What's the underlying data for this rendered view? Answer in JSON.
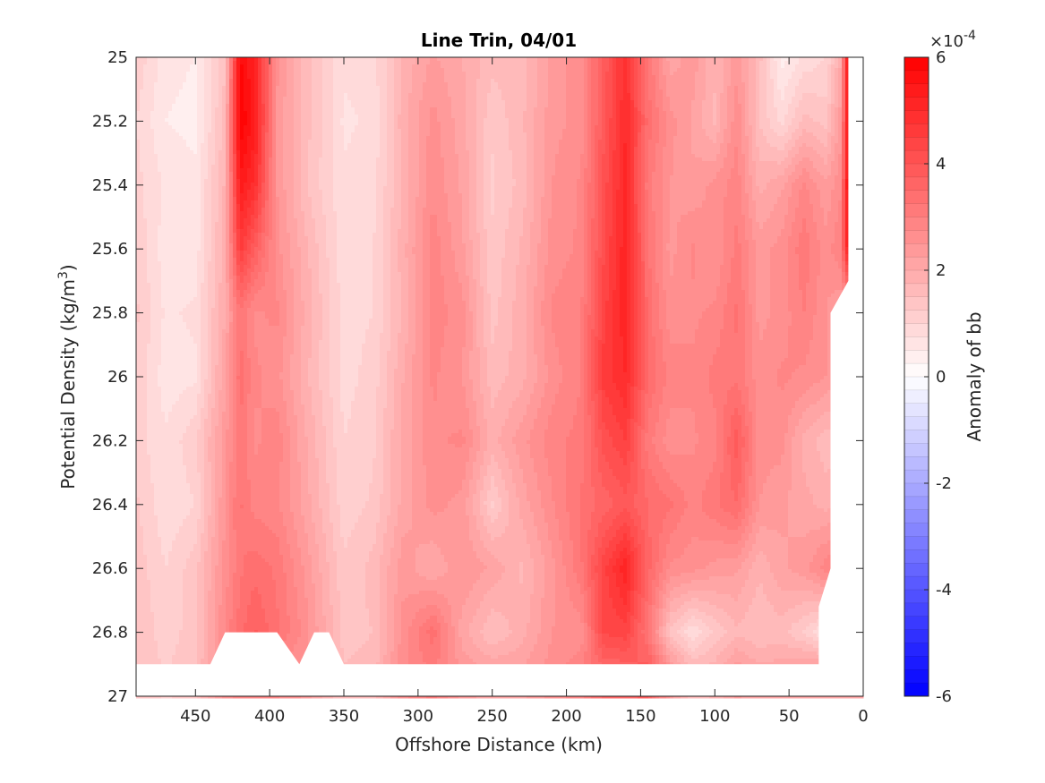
{
  "chart_data": {
    "type": "heatmap",
    "title": "Line Trin, 04/01",
    "xlabel": "Offshore Distance (km)",
    "ylabel_main": "Potential Density (kg/m",
    "ylabel_sup": "3",
    "ylabel_tail": ")",
    "x_reversed": true,
    "xlim": [
      0,
      490
    ],
    "ylim": [
      25,
      27
    ],
    "y_reversed": true,
    "x_ticks": [
      450,
      400,
      350,
      300,
      250,
      200,
      150,
      100,
      50,
      0
    ],
    "x_tick_labels": [
      "450",
      "400",
      "350",
      "300",
      "250",
      "200",
      "150",
      "100",
      "50",
      "0"
    ],
    "y_ticks": [
      25,
      25.2,
      25.4,
      25.6,
      25.8,
      26,
      26.2,
      26.4,
      26.6,
      26.8,
      27
    ],
    "y_tick_labels": [
      "25",
      "25.2",
      "25.4",
      "25.6",
      "25.8",
      "26",
      "26.2",
      "26.4",
      "26.6",
      "26.8",
      "27"
    ],
    "colorbar": {
      "label": "Anomaly of bb",
      "exponent_base": "×10",
      "exponent": "-4",
      "range": [
        -6,
        6
      ],
      "ticks": [
        6,
        4,
        2,
        0,
        -2,
        -4,
        -6
      ],
      "tick_labels": [
        "6",
        "4",
        "2",
        "0",
        "-2",
        "-4",
        "-6"
      ],
      "levels": 48,
      "color_positive": "#ff0000",
      "color_zero": "#ffffff",
      "color_negative": "#0000ff"
    },
    "grid": false,
    "field": {
      "description_note": "",
      "x_km": [
        490,
        470,
        450,
        430,
        420,
        410,
        395,
        375,
        350,
        330,
        310,
        290,
        270,
        250,
        230,
        210,
        190,
        175,
        160,
        145,
        130,
        115,
        100,
        85,
        70,
        55,
        40,
        25,
        15,
        10
      ],
      "y": [
        25.0,
        25.2,
        25.4,
        25.6,
        25.8,
        26.0,
        26.2,
        26.4,
        26.6,
        26.8,
        26.9
      ],
      "values_e4": [
        [
          1.2,
          0.6,
          0.5,
          1.5,
          5.8,
          5.2,
          2.6,
          1.6,
          0.8,
          0.9,
          1.8,
          2.3,
          2.0,
          1.6,
          1.6,
          2.3,
          2.7,
          3.8,
          4.9,
          3.2,
          2.1,
          2.4,
          1.8,
          2.4,
          1.6,
          0.4,
          0.8,
          1.0,
          2.0,
          5.8
        ],
        [
          1.0,
          0.5,
          0.4,
          1.6,
          6.0,
          5.4,
          2.4,
          1.6,
          0.7,
          0.8,
          1.9,
          2.6,
          2.1,
          1.3,
          1.7,
          2.4,
          2.6,
          3.9,
          5.0,
          3.4,
          2.6,
          2.2,
          1.7,
          2.7,
          1.5,
          0.9,
          1.6,
          1.4,
          2.4,
          5.6
        ],
        [
          1.1,
          0.7,
          0.6,
          1.8,
          5.4,
          4.9,
          2.5,
          1.5,
          0.8,
          0.9,
          1.8,
          2.7,
          2.2,
          1.2,
          1.6,
          2.5,
          2.8,
          4.1,
          5.1,
          3.1,
          2.5,
          2.3,
          2.6,
          2.9,
          1.9,
          2.2,
          2.8,
          2.3,
          2.7,
          5.8
        ],
        [
          1.2,
          0.6,
          0.6,
          1.9,
          4.6,
          3.8,
          2.6,
          1.8,
          0.8,
          1.0,
          1.9,
          2.9,
          2.3,
          1.3,
          1.8,
          2.6,
          2.8,
          4.2,
          5.2,
          3.3,
          2.4,
          2.8,
          2.5,
          3.1,
          2.4,
          2.6,
          3.2,
          2.6,
          3.0,
          5.4
        ],
        [
          1.3,
          0.7,
          0.8,
          2.0,
          3.2,
          2.7,
          2.8,
          1.9,
          0.9,
          1.0,
          1.8,
          2.9,
          2.6,
          1.4,
          1.9,
          2.8,
          3.0,
          4.4,
          5.2,
          3.4,
          2.6,
          2.7,
          2.8,
          3.3,
          2.4,
          2.6,
          3.0,
          2.5,
          2.2,
          null
        ],
        [
          1.2,
          0.6,
          0.7,
          2.2,
          3.4,
          2.8,
          2.6,
          1.8,
          0.9,
          1.1,
          2.0,
          2.8,
          2.5,
          1.6,
          1.9,
          2.6,
          3.0,
          4.6,
          5.0,
          3.5,
          2.9,
          2.8,
          3.1,
          3.2,
          2.6,
          2.8,
          2.7,
          2.5,
          2.3,
          null
        ],
        [
          1.1,
          0.8,
          1.2,
          2.4,
          3.2,
          2.7,
          2.9,
          2.0,
          1.0,
          1.2,
          2.1,
          2.7,
          2.8,
          1.9,
          2.4,
          2.9,
          3.1,
          4.1,
          4.5,
          3.1,
          2.6,
          2.7,
          2.9,
          3.9,
          2.6,
          2.6,
          1.9,
          1.6,
          1.5,
          null
        ],
        [
          1.3,
          0.8,
          1.0,
          2.5,
          3.3,
          2.9,
          2.8,
          2.1,
          1.1,
          1.3,
          2.1,
          2.6,
          2.4,
          1.2,
          2.1,
          2.7,
          3.3,
          3.6,
          3.9,
          3.5,
          3.3,
          2.9,
          3.2,
          3.5,
          2.5,
          2.3,
          2.1,
          1.9,
          2.2,
          null
        ],
        [
          1.4,
          1.0,
          1.4,
          2.6,
          3.2,
          3.4,
          3.2,
          2.4,
          1.3,
          1.6,
          2.4,
          2.0,
          2.5,
          2.2,
          1.7,
          2.4,
          3.2,
          4.4,
          5.2,
          3.6,
          2.7,
          2.6,
          2.4,
          2.3,
          1.8,
          2.2,
          2.4,
          2.9,
          3.2,
          null
        ],
        [
          1.5,
          1.1,
          1.4,
          2.8,
          3.4,
          3.8,
          3.3,
          2.6,
          1.4,
          1.5,
          2.6,
          3.4,
          2.1,
          1.5,
          1.9,
          2.5,
          2.6,
          4.3,
          4.4,
          3.2,
          1.4,
          0.8,
          1.3,
          1.7,
          1.5,
          1.6,
          1.2,
          0.7,
          0.8,
          null
        ],
        [
          1.5,
          1.2,
          1.5,
          2.6,
          2.9,
          3.0,
          2.8,
          2.4,
          1.5,
          1.6,
          2.7,
          3.1,
          2.4,
          2.1,
          2.2,
          2.6,
          2.9,
          3.6,
          3.7,
          3.8,
          2.4,
          1.6,
          1.8,
          2.3,
          2.0,
          2.1,
          2.2,
          null,
          null,
          null
        ]
      ],
      "masked_polygon_km": [
        [
          490,
          26.9
        ],
        [
          440,
          26.9
        ],
        [
          430,
          26.8
        ],
        [
          395,
          26.8
        ],
        [
          380,
          26.9
        ],
        [
          370,
          26.8
        ],
        [
          360,
          26.8
        ],
        [
          350,
          26.9
        ],
        [
          30,
          26.9
        ],
        [
          30,
          26.72
        ],
        [
          22,
          26.6
        ],
        [
          22,
          25.8
        ],
        [
          10,
          25.7
        ],
        [
          10,
          25.0
        ],
        [
          0,
          25.0
        ],
        [
          0,
          27.0
        ],
        [
          490,
          27.0
        ]
      ]
    }
  }
}
